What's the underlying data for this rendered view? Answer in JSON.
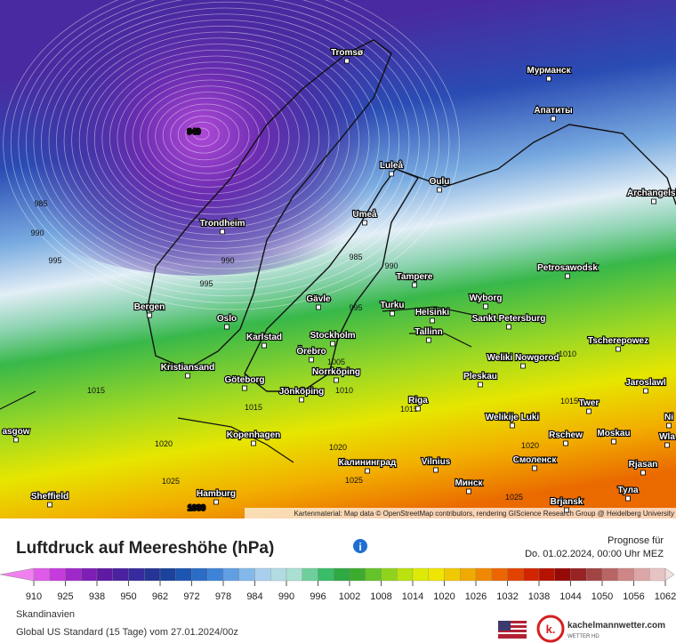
{
  "map": {
    "cities": [
      "Tromsø",
      "Мурманск",
      "Апатиты",
      "Luleå",
      "Oulu",
      "Archangelsk",
      "Umeå",
      "Trondheim",
      "Tampere",
      "Petrosawodsk",
      "Gävle",
      "Bergen",
      "Turku",
      "Helsinki",
      "Wyborg",
      "Sankt Petersburg",
      "Oslo",
      "Karlstad",
      "Stockholm",
      "Tallinn",
      "Tscherepowez",
      "Örebro",
      "Kristiansand",
      "Norrköping",
      "Weliki Nowgorod",
      "Göteborg",
      "Jönköping",
      "Pleskau",
      "Jaroslawl",
      "Riga",
      "Twer",
      "Welikije Luki",
      "Kopenhagen",
      "Rschew",
      "Moskau",
      "asgow",
      "Ni",
      "Wla",
      "Sheffield",
      "Hamburg",
      "Калининград",
      "Vilnius",
      "Смоленск",
      "Rjasan",
      "Минск",
      "Тула",
      "Brjansk"
    ],
    "isobar_labels": [
      940,
      985,
      990,
      995,
      990,
      995,
      985,
      990,
      995,
      1015,
      1015,
      1020,
      1025,
      1030,
      1020,
      1025,
      1010,
      1015,
      1020,
      1025,
      1015,
      1010,
      1005
    ],
    "attribution": "Kartenmaterial: Map data © OpenStreetMap contributors, rendering GIScience Research Group @ Heidelberg University"
  },
  "header": {
    "title": "Luftdruck auf Meereshöhe (hPa)",
    "forecast_label": "Prognose für",
    "forecast_date": "Do. 01.02.2024, 00:00 Uhr MEZ"
  },
  "legend": {
    "ticks": [
      910,
      925,
      938,
      950,
      962,
      972,
      978,
      984,
      990,
      996,
      1002,
      1008,
      1014,
      1020,
      1026,
      1032,
      1038,
      1044,
      1050,
      1056,
      1062
    ]
  },
  "footer": {
    "region": "Skandinavien",
    "model": "Global US Standard (15 Tage) vom 27.01.2024/00z",
    "logo_letter": "k.",
    "brand": "kachelmannwetter.com",
    "brand_sub": "WETTER HD"
  }
}
